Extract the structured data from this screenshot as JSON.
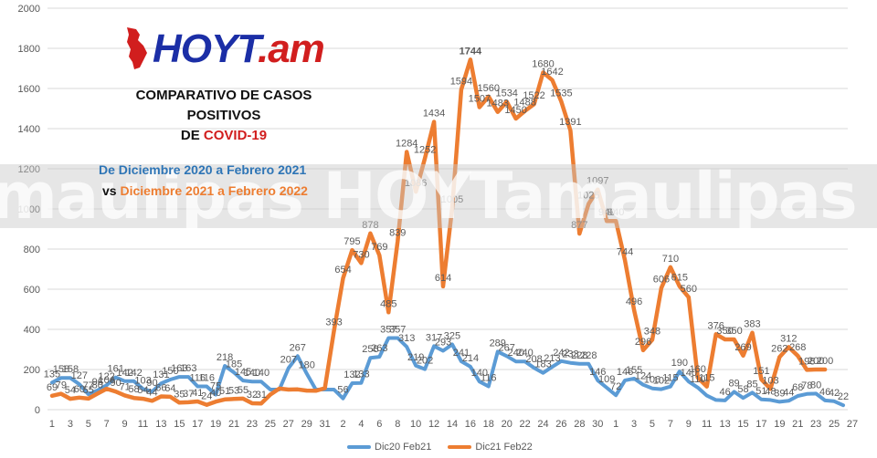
{
  "logo": {
    "part1": "HOYT",
    "part2": ".am"
  },
  "title": {
    "line1": "COMPARATIVO DE CASOS",
    "line2": "POSITIVOS",
    "line3_prefix": "DE ",
    "line3_highlight": "COVID-19"
  },
  "subtitle1": "De Diciembre 2020 a Febrero 2021",
  "subtitle2_vs": "vs ",
  "subtitle2_rest": "Diciembre 2021 a Febrero 2022",
  "watermark": "maulipas HOYTamaulipas HOYTama",
  "colors": {
    "series1": "#5b9bd5",
    "series2": "#ed7d31",
    "peak_label": "#d11e1e"
  },
  "chart_data": {
    "type": "line",
    "ylim": [
      0,
      2000
    ],
    "yticks": [
      0,
      200,
      400,
      600,
      800,
      1000,
      1200,
      1400,
      1600,
      1800,
      2000
    ],
    "xtick_labels": [
      "1",
      "3",
      "5",
      "7",
      "9",
      "11",
      "13",
      "15",
      "17",
      "19",
      "21",
      "23",
      "25",
      "27",
      "29",
      "31",
      "2",
      "4",
      "6",
      "8",
      "10",
      "12",
      "14",
      "16",
      "18",
      "20",
      "22",
      "24",
      "26",
      "28",
      "30",
      "1",
      "3",
      "5",
      "7",
      "9",
      "11",
      "13",
      "15",
      "17",
      "19",
      "21",
      "23",
      "25",
      "27"
    ],
    "grid": true,
    "legend_position": "bottom",
    "series": [
      {
        "name": "Dic20 Feb21",
        "values": [
          135,
          158,
          158,
          127,
          77,
          96,
          122,
          161,
          142,
          142,
          103,
          90,
          131,
          150,
          163,
          163,
          116,
          116,
          75,
          218,
          185,
          145,
          140,
          140,
          100,
          100,
          207,
          267,
          180,
          100,
          100,
          100,
          56,
          132,
          133,
          258,
          263,
          357,
          357,
          313,
          219,
          202,
          317,
          293,
          325,
          241,
          214,
          140,
          116,
          289,
          267,
          240,
          240,
          208,
          183,
          213,
          242,
          233,
          228,
          228,
          146,
          109,
          72,
          146,
          155,
          124,
          106,
          102,
          115,
          190,
          140,
          110,
          70,
          48,
          46,
          89,
          58,
          85,
          51,
          48,
          39,
          44,
          68,
          78,
          80,
          46,
          42,
          22
        ],
        "labels": [
          "135",
          "158",
          "158",
          "127",
          "77",
          "96",
          "122",
          "161",
          "142",
          "142",
          "103",
          "90",
          "131",
          "150",
          "163",
          "163",
          "116",
          "116",
          "75",
          "218",
          "185",
          "145",
          "140",
          "140",
          "",
          "",
          "207",
          "267",
          "180",
          "",
          "",
          "",
          "56",
          "132",
          "133",
          "258",
          "263",
          "357",
          "357",
          "313",
          "219",
          "202",
          "317",
          "293",
          "325",
          "241",
          "214",
          "140",
          "116",
          "289",
          "267",
          "240",
          "240",
          "208",
          "183",
          "213",
          "242",
          "233",
          "228",
          "228",
          "146",
          "109",
          "72",
          "146",
          "155",
          "124",
          "106",
          "102",
          "115",
          "190",
          "140",
          "110",
          "",
          "",
          "46",
          "89",
          "58",
          "85",
          "51",
          "48",
          "39",
          "44",
          "68",
          "78",
          "80",
          "46",
          "42",
          "22"
        ]
      },
      {
        "name": "Dic21 Feb22",
        "values": [
          69,
          79,
          54,
          60,
          55,
          80,
          104,
          90,
          71,
          58,
          54,
          44,
          66,
          64,
          35,
          37,
          41,
          24,
          40,
          51,
          53,
          55,
          32,
          31,
          75,
          105,
          100,
          101,
          95,
          94,
          107,
          393,
          654,
          795,
          730,
          878,
          769,
          485,
          839,
          1284,
          1086,
          1252,
          1434,
          614,
          1005,
          1594,
          1744,
          1507,
          1560,
          1483,
          1534,
          1450,
          1488,
          1522,
          1680,
          1642,
          1535,
          1391,
          877,
          1025,
          1097,
          940,
          940,
          744,
          496,
          296,
          348,
          606,
          710,
          615,
          560,
          160,
          115,
          376,
          350,
          350,
          269,
          383,
          151,
          103,
          262,
          312,
          268,
          198,
          200,
          200
        ],
        "labels": [
          "69",
          "79",
          "54",
          "60",
          "55",
          "80",
          "104",
          "90",
          "71",
          "58",
          "54",
          "44",
          "66",
          "64",
          "35",
          "37",
          "41",
          "24",
          "40",
          "51",
          "53",
          "55",
          "32",
          "31",
          "",
          "",
          "",
          "",
          "",
          "",
          "",
          "393",
          "654",
          "795",
          "730",
          "878",
          "769",
          "485",
          "839",
          "1284",
          "1086",
          "1252",
          "1434",
          "614",
          "1005",
          "1594",
          "1744",
          "1507",
          "1560",
          "1483",
          "1534",
          "1450",
          "1488",
          "1522",
          "1680",
          "1642",
          "1535",
          "1391",
          "877",
          "1025",
          "1097",
          "940",
          "940",
          "744",
          "496",
          "296",
          "348",
          "606",
          "710",
          "615",
          "560",
          "160",
          "115",
          "376",
          "350",
          "350",
          "269",
          "383",
          "151",
          "103",
          "262",
          "312",
          "268",
          "198",
          "200",
          "200"
        ]
      }
    ],
    "peak": {
      "value": 1744,
      "label": "1744"
    }
  }
}
